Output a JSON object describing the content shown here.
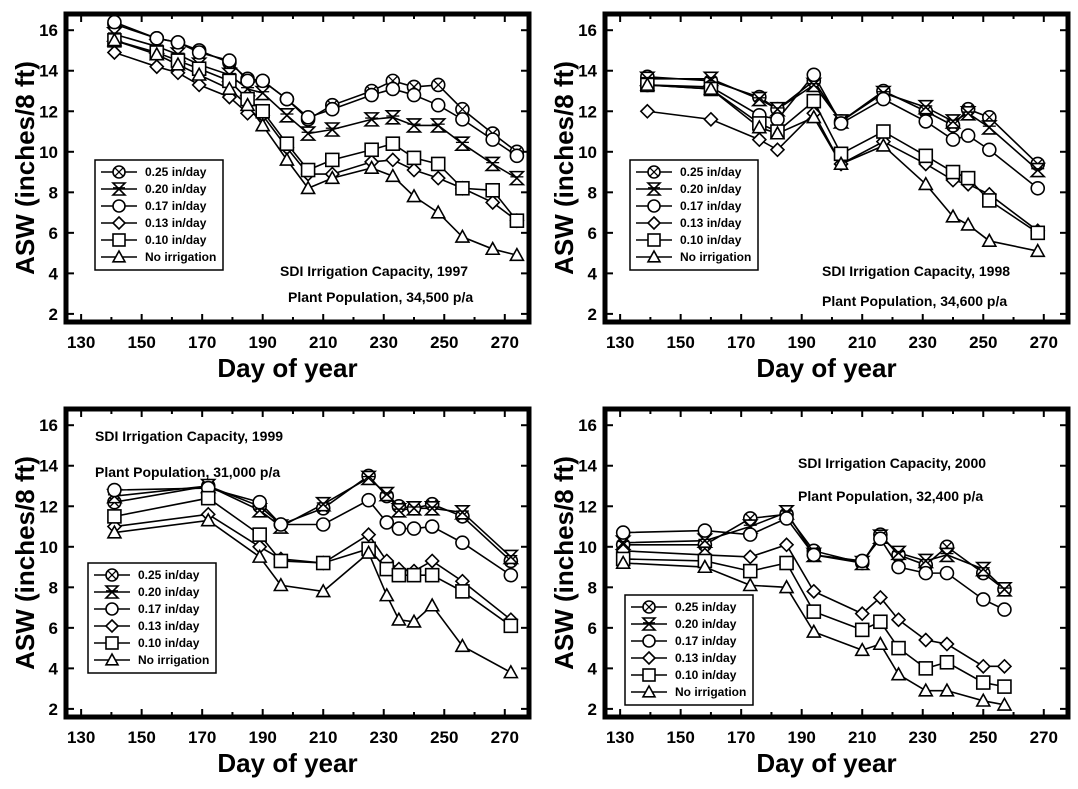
{
  "chart_data": [
    {
      "type": "line",
      "title": "SDI Irrigation Capacity, 1997",
      "subtitle": "Plant Population, 34,500 p/a",
      "xlabel": "Day of year",
      "ylabel": "ASW (inches/8 ft)",
      "xlim": [
        125,
        278
      ],
      "ylim": [
        1.6,
        16.8
      ],
      "xticks": [
        130,
        150,
        170,
        190,
        210,
        230,
        250,
        270
      ],
      "yticks": [
        2,
        4,
        6,
        8,
        10,
        12,
        14,
        16
      ],
      "legend_position": "bottom-left",
      "series": [
        {
          "name": "0.25 in/day",
          "marker": "circle-x",
          "x": [
            141,
            155,
            162,
            169,
            179,
            185,
            190,
            198,
            205,
            213,
            226,
            233,
            240,
            248,
            256,
            266,
            274
          ],
          "y": [
            16.3,
            15.6,
            15.4,
            15.0,
            14.4,
            13.6,
            13.5,
            12.6,
            11.6,
            12.3,
            13.0,
            13.5,
            13.2,
            13.3,
            12.1,
            10.9,
            10.0
          ]
        },
        {
          "name": "0.20 in/day",
          "marker": "hourglass",
          "x": [
            141,
            155,
            162,
            169,
            179,
            185,
            190,
            198,
            205,
            213,
            226,
            233,
            240,
            248,
            256,
            266,
            274
          ],
          "y": [
            15.8,
            15.2,
            14.8,
            14.3,
            13.8,
            13.1,
            12.9,
            11.8,
            10.9,
            11.1,
            11.6,
            11.7,
            11.3,
            11.3,
            10.4,
            9.4,
            8.7
          ]
        },
        {
          "name": "0.17 in/day",
          "marker": "circle",
          "x": [
            141,
            155,
            162,
            169,
            179,
            185,
            190,
            198,
            205,
            213,
            226,
            233,
            240,
            248,
            256,
            266,
            274
          ],
          "y": [
            16.4,
            15.6,
            15.4,
            14.9,
            14.5,
            13.5,
            13.5,
            12.6,
            11.7,
            12.1,
            12.8,
            13.1,
            12.8,
            12.3,
            11.6,
            10.6,
            9.8
          ]
        },
        {
          "name": "0.13 in/day",
          "marker": "diamond",
          "x": [
            141,
            155,
            162,
            169,
            179,
            185,
            190,
            198,
            205,
            213,
            226,
            233,
            240,
            248,
            256,
            266,
            274
          ],
          "y": [
            14.9,
            14.2,
            13.9,
            13.3,
            12.7,
            11.9,
            11.8,
            10.2,
            8.9,
            8.9,
            9.5,
            9.6,
            9.1,
            8.7,
            8.2,
            7.5,
            6.6
          ]
        },
        {
          "name": "0.10 in/day",
          "marker": "square",
          "x": [
            141,
            155,
            162,
            169,
            179,
            185,
            190,
            198,
            205,
            213,
            226,
            233,
            240,
            248,
            256,
            266,
            274
          ],
          "y": [
            15.5,
            14.9,
            14.5,
            14.1,
            13.5,
            12.6,
            12.0,
            10.4,
            9.1,
            9.6,
            10.1,
            10.4,
            9.7,
            9.4,
            8.2,
            8.1,
            6.6
          ]
        },
        {
          "name": "No irrigation",
          "marker": "triangle",
          "x": [
            141,
            155,
            162,
            169,
            179,
            185,
            190,
            198,
            205,
            213,
            226,
            233,
            240,
            248,
            256,
            266,
            274
          ],
          "y": [
            15.5,
            14.8,
            14.3,
            13.8,
            13.1,
            12.3,
            11.3,
            9.6,
            8.2,
            8.7,
            9.2,
            8.8,
            7.8,
            7.0,
            5.8,
            5.2,
            4.9
          ]
        }
      ]
    },
    {
      "type": "line",
      "title": "SDI Irrigation Capacity, 1998",
      "subtitle": "Plant Population, 34,600 p/a",
      "xlabel": "Day of year",
      "ylabel": "ASW (inches/8 ft)",
      "xlim": [
        125,
        278
      ],
      "ylim": [
        1.6,
        16.8
      ],
      "xticks": [
        130,
        150,
        170,
        190,
        210,
        230,
        250,
        270
      ],
      "yticks": [
        2,
        4,
        6,
        8,
        10,
        12,
        14,
        16
      ],
      "legend_position": "bottom-left",
      "series": [
        {
          "name": "0.25 in/day",
          "marker": "circle-x",
          "x": [
            139,
            160,
            176,
            182,
            194,
            203,
            217,
            231,
            240,
            245,
            252,
            268
          ],
          "y": [
            13.7,
            13.5,
            12.7,
            12.1,
            13.5,
            11.5,
            13.0,
            12.0,
            11.3,
            12.1,
            11.7,
            9.4
          ]
        },
        {
          "name": "0.20 in/day",
          "marker": "hourglass",
          "x": [
            139,
            160,
            176,
            182,
            194,
            203,
            217,
            231,
            240,
            245,
            252,
            268
          ],
          "y": [
            13.6,
            13.6,
            12.6,
            12.1,
            13.3,
            11.5,
            12.9,
            12.2,
            11.5,
            11.9,
            11.2,
            9.1
          ]
        },
        {
          "name": "0.17 in/day",
          "marker": "circle",
          "x": [
            139,
            160,
            176,
            182,
            194,
            203,
            217,
            231,
            240,
            245,
            252,
            268
          ],
          "y": [
            13.3,
            13.2,
            11.8,
            11.6,
            13.8,
            11.4,
            12.6,
            11.5,
            10.6,
            10.8,
            10.1,
            8.2
          ]
        },
        {
          "name": "0.13 in/day",
          "marker": "diamond",
          "x": [
            139,
            160,
            176,
            182,
            194,
            203,
            217,
            231,
            240,
            245,
            252,
            268
          ],
          "y": [
            12.0,
            11.6,
            10.6,
            10.1,
            11.9,
            9.4,
            10.5,
            9.4,
            8.6,
            8.4,
            7.9,
            6.1
          ]
        },
        {
          "name": "0.10 in/day",
          "marker": "square",
          "x": [
            139,
            160,
            176,
            182,
            194,
            203,
            217,
            231,
            240,
            245,
            252,
            268
          ],
          "y": [
            13.3,
            13.1,
            11.4,
            11.0,
            12.5,
            9.9,
            11.0,
            9.8,
            9.0,
            8.7,
            7.6,
            6.0
          ]
        },
        {
          "name": "No irrigation",
          "marker": "triangle",
          "x": [
            139,
            160,
            176,
            182,
            194,
            203,
            217,
            231,
            240,
            245,
            252,
            268
          ],
          "y": [
            13.3,
            13.1,
            11.2,
            10.9,
            11.7,
            9.4,
            10.3,
            8.4,
            6.8,
            6.4,
            5.6,
            5.1
          ]
        }
      ]
    },
    {
      "type": "line",
      "title": "SDI Irrigation Capacity, 1999",
      "subtitle": "Plant Population, 31,000 p/a",
      "xlabel": "Day of year",
      "ylabel": "ASW (inches/8 ft)",
      "xlim": [
        125,
        278
      ],
      "ylim": [
        1.6,
        16.8
      ],
      "xticks": [
        130,
        150,
        170,
        190,
        210,
        230,
        250,
        270
      ],
      "yticks": [
        2,
        4,
        6,
        8,
        10,
        12,
        14,
        16
      ],
      "legend_position": "bottom-left",
      "series": [
        {
          "name": "0.25 in/day",
          "marker": "circle-x",
          "x": [
            141,
            172,
            189,
            196,
            210,
            225,
            231,
            235,
            240,
            246,
            256,
            272
          ],
          "y": [
            12.2,
            13.0,
            12.0,
            11.1,
            11.9,
            13.5,
            12.5,
            12.0,
            11.9,
            12.1,
            11.5,
            9.3
          ]
        },
        {
          "name": "0.20 in/day",
          "marker": "hourglass",
          "x": [
            141,
            172,
            189,
            196,
            210,
            225,
            231,
            235,
            240,
            246,
            256,
            272
          ],
          "y": [
            12.5,
            13.0,
            11.8,
            11.0,
            12.1,
            13.4,
            12.6,
            11.8,
            11.9,
            11.9,
            11.7,
            9.5
          ]
        },
        {
          "name": "0.17 in/day",
          "marker": "circle",
          "x": [
            141,
            172,
            189,
            196,
            210,
            225,
            231,
            235,
            240,
            246,
            256,
            272
          ],
          "y": [
            12.8,
            12.9,
            12.2,
            11.1,
            11.1,
            12.3,
            11.2,
            10.9,
            10.9,
            11.0,
            10.2,
            8.6
          ]
        },
        {
          "name": "0.13 in/day",
          "marker": "diamond",
          "x": [
            141,
            172,
            189,
            196,
            210,
            225,
            231,
            235,
            240,
            246,
            256,
            272
          ],
          "y": [
            11.0,
            11.6,
            10.0,
            9.4,
            9.2,
            10.6,
            9.3,
            8.9,
            8.8,
            9.3,
            8.3,
            6.4
          ]
        },
        {
          "name": "0.10 in/day",
          "marker": "square",
          "x": [
            141,
            172,
            189,
            196,
            210,
            225,
            231,
            235,
            240,
            246,
            256,
            272
          ],
          "y": [
            11.5,
            12.4,
            10.6,
            9.3,
            9.2,
            9.9,
            8.9,
            8.6,
            8.6,
            8.6,
            7.8,
            6.1
          ]
        },
        {
          "name": "No irrigation",
          "marker": "triangle",
          "x": [
            141,
            172,
            189,
            196,
            210,
            225,
            231,
            235,
            240,
            246,
            256,
            272
          ],
          "y": [
            10.7,
            11.3,
            9.5,
            8.1,
            7.8,
            9.7,
            7.6,
            6.4,
            6.3,
            7.1,
            5.1,
            3.8
          ]
        }
      ]
    },
    {
      "type": "line",
      "title": "SDI Irrigation Capacity, 2000",
      "subtitle": "Plant Population, 32,400 p/a",
      "xlabel": "Day of year",
      "ylabel": "ASW (inches/8 ft)",
      "xlim": [
        125,
        278
      ],
      "ylim": [
        1.6,
        16.8
      ],
      "xticks": [
        130,
        150,
        170,
        190,
        210,
        230,
        250,
        270
      ],
      "yticks": [
        2,
        4,
        6,
        8,
        10,
        12,
        14,
        16
      ],
      "legend_position": "bottom-left",
      "series": [
        {
          "name": "0.25 in/day",
          "marker": "circle-x",
          "x": [
            131,
            158,
            173,
            185,
            194,
            210,
            216,
            222,
            231,
            238,
            250,
            257
          ],
          "y": [
            10.1,
            10.1,
            11.4,
            11.6,
            9.8,
            9.2,
            10.6,
            9.6,
            9.1,
            10.0,
            8.7,
            7.9
          ]
        },
        {
          "name": "0.20 in/day",
          "marker": "hourglass",
          "x": [
            131,
            158,
            173,
            185,
            194,
            210,
            216,
            222,
            231,
            238,
            250,
            257
          ],
          "y": [
            10.2,
            10.3,
            11.0,
            11.7,
            9.6,
            9.2,
            10.5,
            9.7,
            9.3,
            9.6,
            8.9,
            7.9
          ]
        },
        {
          "name": "0.17 in/day",
          "marker": "circle",
          "x": [
            131,
            158,
            173,
            185,
            194,
            210,
            216,
            222,
            231,
            238,
            250,
            257
          ],
          "y": [
            10.7,
            10.8,
            10.6,
            11.4,
            9.6,
            9.3,
            10.4,
            9.0,
            8.7,
            8.7,
            7.4,
            6.9
          ]
        },
        {
          "name": "0.13 in/day",
          "marker": "diamond",
          "x": [
            131,
            158,
            173,
            185,
            194,
            210,
            216,
            222,
            231,
            238,
            250,
            257
          ],
          "y": [
            9.8,
            9.6,
            9.5,
            10.1,
            7.8,
            6.7,
            7.5,
            6.4,
            5.4,
            5.2,
            4.1,
            4.1
          ]
        },
        {
          "name": "0.10 in/day",
          "marker": "square",
          "x": [
            131,
            158,
            173,
            185,
            194,
            210,
            216,
            222,
            231,
            238,
            250,
            257
          ],
          "y": [
            9.4,
            9.3,
            8.8,
            9.2,
            6.8,
            5.9,
            6.3,
            5.0,
            4.0,
            4.3,
            3.3,
            3.1
          ]
        },
        {
          "name": "No irrigation",
          "marker": "triangle",
          "x": [
            131,
            158,
            173,
            185,
            194,
            210,
            216,
            222,
            231,
            238,
            250,
            257
          ],
          "y": [
            9.2,
            9.0,
            8.1,
            8.0,
            5.8,
            4.9,
            5.2,
            3.7,
            2.9,
            2.9,
            2.4,
            2.2
          ]
        }
      ]
    }
  ]
}
